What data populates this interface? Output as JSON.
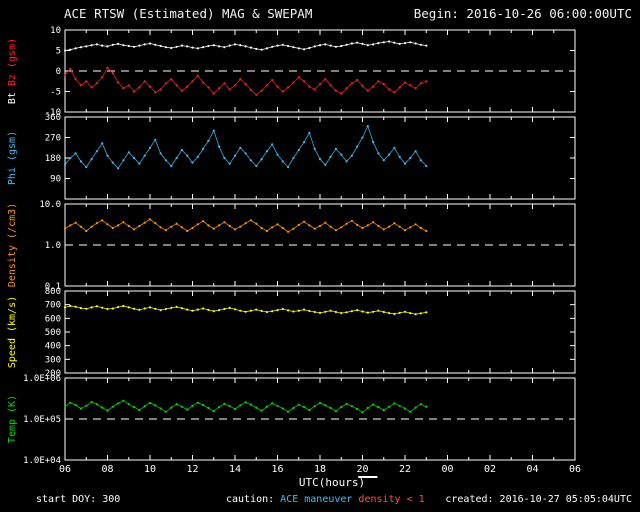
{
  "header": {
    "title": "ACE RTSW (Estimated) MAG & SWEPAM",
    "begin": "Begin: 2016-10-26 06:00:00UTC"
  },
  "footer": {
    "start_doy": "start DOY: 300",
    "caution_label": "caution:",
    "maneuver_label": "ACE maneuver",
    "density_label": "density < 1",
    "created": "created: 2016-10-27 05:05:04UTC"
  },
  "colors": {
    "background": "#000000",
    "axis": "#ffffff",
    "title": "#f2f2f2",
    "bt": "#ffffff",
    "bz": "#ff2020",
    "phi": "#44bbee",
    "density": "#ff9900",
    "speed": "#ffff00",
    "temp": "#00dd00",
    "caution_maneuver": "#44bbee",
    "caution_density": "#ff5533"
  },
  "chart_data": {
    "type": "line",
    "title": "ACE RTSW (Estimated) MAG & SWEPAM",
    "x_label": "UTC(hours)",
    "x_range": [
      6,
      30
    ],
    "x_ticks": [
      "06",
      "08",
      "10",
      "12",
      "14",
      "16",
      "18",
      "20",
      "22",
      "00",
      "02",
      "04",
      "06"
    ],
    "maneuver_marker": {
      "start": 19.8,
      "end": 20.7
    },
    "x": [
      6,
      6.25,
      6.5,
      6.75,
      7,
      7.25,
      7.5,
      7.75,
      8,
      8.25,
      8.5,
      8.75,
      9,
      9.25,
      9.5,
      9.75,
      10,
      10.25,
      10.5,
      10.75,
      11,
      11.25,
      11.5,
      11.75,
      12,
      12.25,
      12.5,
      12.75,
      13,
      13.25,
      13.5,
      13.75,
      14,
      14.25,
      14.5,
      14.75,
      15,
      15.25,
      15.5,
      15.75,
      16,
      16.25,
      16.5,
      16.75,
      17,
      17.25,
      17.5,
      17.75,
      18,
      18.25,
      18.5,
      18.75,
      19,
      19.25,
      19.5,
      19.75,
      20,
      20.25,
      20.5,
      20.75,
      21,
      21.25,
      21.5,
      21.75,
      22,
      22.25,
      22.5,
      22.75,
      23
    ],
    "panels": [
      {
        "id": "mag",
        "label_parts": [
          {
            "text": "Bt ",
            "color": "#ffffff"
          },
          {
            "text": "Bz (gsm)",
            "color": "#ff2020"
          }
        ],
        "scale": "linear",
        "ylim": [
          -10,
          10
        ],
        "yticks": [
          {
            "v": 10,
            "label": "10"
          },
          {
            "v": 5,
            "label": "5"
          },
          {
            "v": 0,
            "label": "0"
          },
          {
            "v": -5,
            "label": "-5"
          },
          {
            "v": -10,
            "label": "-10"
          }
        ],
        "refline": 0,
        "series": [
          {
            "name": "Bt",
            "color": "#ffffff",
            "values": [
              5.0,
              5.2,
              5.5,
              5.8,
              6.0,
              6.3,
              6.5,
              6.2,
              6.0,
              6.4,
              6.6,
              6.3,
              6.1,
              5.9,
              6.2,
              6.5,
              6.7,
              6.4,
              6.1,
              5.8,
              5.6,
              5.9,
              6.2,
              6.0,
              5.7,
              5.5,
              5.8,
              6.1,
              6.3,
              6.0,
              5.8,
              6.2,
              6.5,
              6.3,
              6.0,
              5.7,
              5.4,
              5.2,
              5.5,
              5.9,
              6.2,
              6.4,
              6.1,
              5.8,
              5.5,
              5.3,
              5.6,
              6.0,
              6.3,
              6.5,
              6.2,
              5.9,
              6.1,
              6.4,
              6.7,
              6.9,
              6.6,
              6.3,
              6.5,
              6.8,
              7.0,
              7.2,
              6.9,
              6.6,
              6.8,
              7.0,
              6.7,
              6.4,
              6.2
            ]
          },
          {
            "name": "Bz",
            "color": "#ff2020",
            "values": [
              -1.0,
              0.5,
              -2.0,
              -3.5,
              -2.5,
              -4.0,
              -3.0,
              -1.5,
              0.8,
              -0.5,
              -2.8,
              -4.2,
              -3.5,
              -5.0,
              -4.0,
              -2.5,
              -3.8,
              -5.2,
              -4.5,
              -3.0,
              -2.0,
              -3.5,
              -4.8,
              -3.8,
              -2.5,
              -1.2,
              -2.8,
              -4.0,
              -5.5,
              -4.2,
              -3.0,
              -4.5,
              -3.5,
              -2.0,
              -3.2,
              -4.6,
              -5.8,
              -4.8,
              -3.5,
              -2.2,
              -3.8,
              -5.0,
              -4.0,
              -2.8,
              -1.5,
              -2.5,
              -3.8,
              -4.5,
              -3.2,
              -2.0,
              -3.5,
              -4.8,
              -5.5,
              -4.2,
              -3.0,
              -2.2,
              -3.6,
              -4.8,
              -3.8,
              -2.5,
              -3.2,
              -4.5,
              -5.2,
              -4.0,
              -2.8,
              -3.5,
              -4.2,
              -3.0,
              -2.5
            ]
          }
        ]
      },
      {
        "id": "phi",
        "label_parts": [
          {
            "text": "Phi (gsm)",
            "color": "#44bbee"
          }
        ],
        "scale": "linear",
        "ylim": [
          0,
          360
        ],
        "yticks": [
          {
            "v": 360,
            "label": "360"
          },
          {
            "v": 270,
            "label": "270"
          },
          {
            "v": 180,
            "label": "180"
          },
          {
            "v": 90,
            "label": "90"
          }
        ],
        "refline": null,
        "series": [
          {
            "name": "Phi",
            "color": "#44bbee",
            "values": [
              150,
              180,
              200,
              165,
              140,
              175,
              210,
              245,
              190,
              160,
              135,
              170,
              205,
              180,
              155,
              190,
              225,
              260,
              200,
              170,
              145,
              180,
              215,
              190,
              160,
              185,
              220,
              255,
              300,
              230,
              180,
              155,
              190,
              225,
              200,
              170,
              145,
              175,
              210,
              240,
              195,
              165,
              140,
              180,
              215,
              250,
              290,
              220,
              175,
              150,
              185,
              220,
              195,
              165,
              190,
              230,
              270,
              320,
              250,
              200,
              170,
              195,
              225,
              185,
              155,
              180,
              210,
              170,
              145
            ]
          }
        ]
      },
      {
        "id": "density",
        "label_parts": [
          {
            "text": "Density (/cm3)",
            "color": "#ff9900"
          }
        ],
        "scale": "log",
        "ylim": [
          0.1,
          10.0
        ],
        "yticks": [
          {
            "v": 10,
            "label": "10.0"
          },
          {
            "v": 1,
            "label": "1.0"
          },
          {
            "v": 0.1,
            "label": "0.1"
          }
        ],
        "refline": 1,
        "series": [
          {
            "name": "Density",
            "color": "#ff9900",
            "values": [
              2.5,
              3.0,
              3.5,
              2.8,
              2.2,
              2.8,
              3.4,
              4.0,
              3.2,
              2.6,
              3.0,
              3.6,
              2.9,
              2.4,
              2.9,
              3.5,
              4.2,
              3.4,
              2.7,
              2.3,
              2.8,
              3.3,
              2.7,
              2.2,
              2.6,
              3.2,
              3.8,
              3.0,
              2.5,
              3.0,
              3.6,
              2.9,
              2.4,
              2.8,
              3.4,
              4.0,
              3.3,
              2.6,
              2.2,
              2.7,
              3.2,
              2.6,
              2.1,
              2.5,
              3.1,
              3.7,
              3.0,
              2.5,
              2.9,
              3.5,
              2.8,
              2.3,
              2.7,
              3.3,
              3.9,
              3.1,
              2.6,
              3.0,
              3.6,
              2.9,
              2.4,
              2.8,
              3.4,
              2.8,
              2.3,
              2.7,
              3.2,
              2.6,
              2.2
            ]
          }
        ]
      },
      {
        "id": "speed",
        "label_parts": [
          {
            "text": "Speed (km/s)",
            "color": "#ffff00"
          }
        ],
        "scale": "linear",
        "ylim": [
          200,
          800
        ],
        "yticks": [
          {
            "v": 800,
            "label": "800"
          },
          {
            "v": 700,
            "label": "700"
          },
          {
            "v": 600,
            "label": "600"
          },
          {
            "v": 500,
            "label": "500"
          },
          {
            "v": 400,
            "label": "400"
          },
          {
            "v": 300,
            "label": "300"
          },
          {
            "v": 200,
            "label": "200"
          }
        ],
        "refline": null,
        "series": [
          {
            "name": "Speed",
            "color": "#ffff00",
            "values": [
              680,
              690,
              685,
              675,
              670,
              680,
              688,
              678,
              668,
              672,
              682,
              690,
              680,
              670,
              662,
              672,
              680,
              670,
              660,
              668,
              676,
              684,
              674,
              664,
              656,
              664,
              672,
              662,
              652,
              660,
              668,
              676,
              666,
              656,
              648,
              656,
              664,
              654,
              646,
              652,
              660,
              668,
              658,
              650,
              656,
              664,
              654,
              646,
              640,
              648,
              656,
              646,
              638,
              644,
              652,
              660,
              650,
              642,
              648,
              656,
              646,
              638,
              632,
              640,
              648,
              638,
              630,
              636,
              644
            ]
          }
        ]
      },
      {
        "id": "temp",
        "label_parts": [
          {
            "text": "Temp (K)",
            "color": "#00dd00"
          }
        ],
        "scale": "log",
        "ylim": [
          10000,
          1000000
        ],
        "yticks": [
          {
            "v": 1000000,
            "label": "1.0E+06"
          },
          {
            "v": 100000,
            "label": "1.0E+05"
          },
          {
            "v": 10000,
            "label": "1.0E+04"
          }
        ],
        "refline": 100000,
        "series": [
          {
            "name": "Temp",
            "color": "#00dd00",
            "values": [
              200000,
              250000,
              220000,
              180000,
              210000,
              260000,
              230000,
              190000,
              160000,
              200000,
              240000,
              280000,
              230000,
              195000,
              165000,
              205000,
              245000,
              215000,
              180000,
              150000,
              190000,
              230000,
              200000,
              170000,
              210000,
              250000,
              220000,
              185000,
              155000,
              195000,
              235000,
              205000,
              175000,
              215000,
              255000,
              225000,
              190000,
              160000,
              200000,
              240000,
              210000,
              180000,
              150000,
              185000,
              225000,
              195000,
              165000,
              205000,
              245000,
              215000,
              185000,
              155000,
              195000,
              235000,
              205000,
              175000,
              145000,
              185000,
              225000,
              195000,
              165000,
              200000,
              240000,
              210000,
              180000,
              150000,
              190000,
              230000,
              200000
            ]
          }
        ]
      }
    ]
  }
}
